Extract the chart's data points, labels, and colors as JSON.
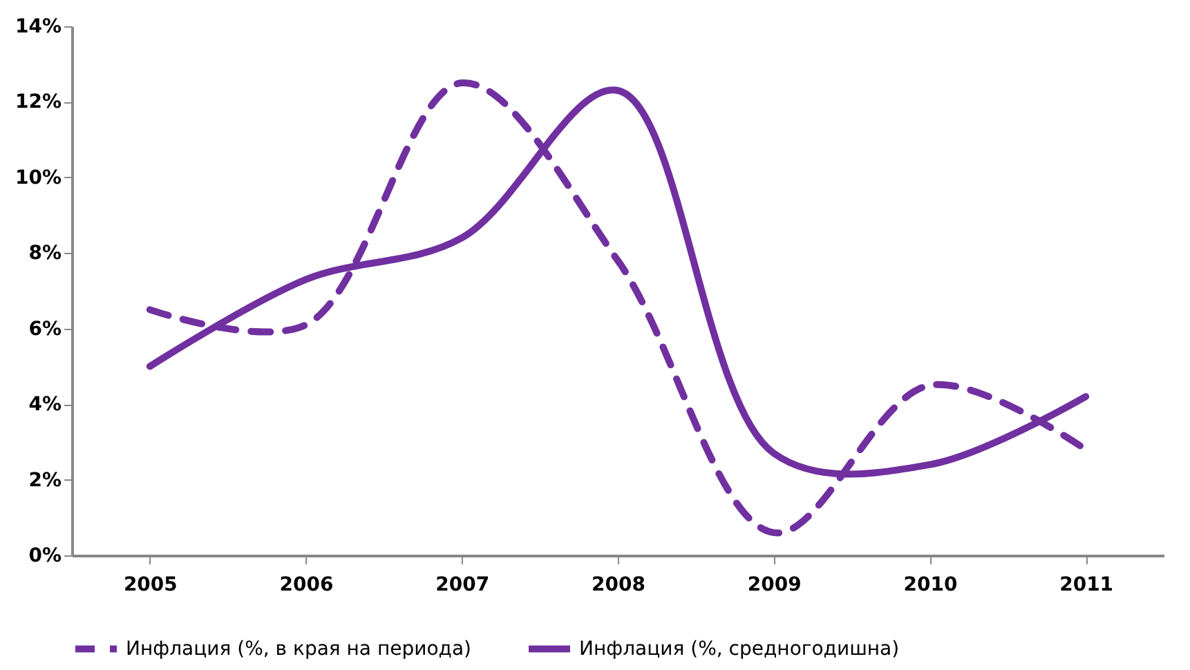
{
  "chart_data": {
    "type": "line",
    "categories": [
      "2005",
      "2006",
      "2007",
      "2008",
      "2009",
      "2010",
      "2011"
    ],
    "series": [
      {
        "name": "Инфлация (%, в края на периода)",
        "color": "#7030a0",
        "line_style": "dashed",
        "values": [
          6.5,
          6.1,
          12.5,
          7.8,
          0.6,
          4.5,
          2.8
        ]
      },
      {
        "name": "Инфлация (%, средногодишна)",
        "color": "#7030a0",
        "line_style": "solid",
        "values": [
          5.0,
          7.3,
          8.4,
          12.3,
          2.7,
          2.4,
          4.2
        ]
      }
    ],
    "ylim": [
      0,
      14
    ],
    "yticks": [
      {
        "value": 0,
        "label": "0%"
      },
      {
        "value": 2,
        "label": "2%"
      },
      {
        "value": 4,
        "label": "4%"
      },
      {
        "value": 6,
        "label": "6%"
      },
      {
        "value": 8,
        "label": "8%"
      },
      {
        "value": 10,
        "label": "10%"
      },
      {
        "value": 12,
        "label": "12%"
      },
      {
        "value": 14,
        "label": "14%"
      }
    ],
    "grid": false,
    "legend": "bottom",
    "marker": "none"
  }
}
